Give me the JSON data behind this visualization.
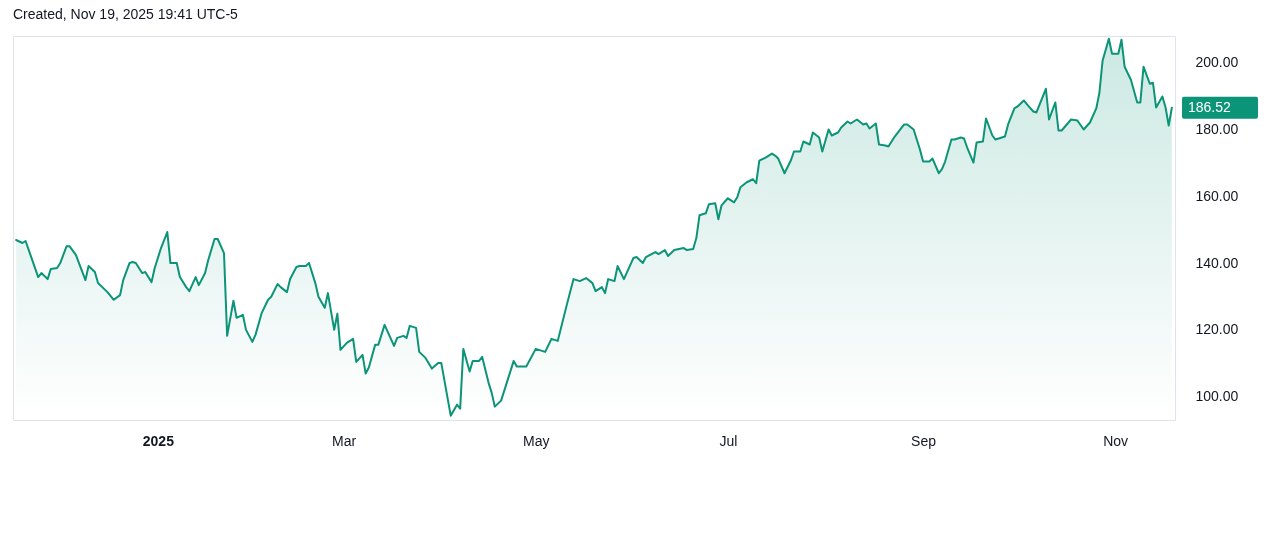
{
  "chart_data": {
    "type": "area",
    "title": "Created, Nov 19, 2025 19:41 UTC-5",
    "x": [
      "2024-11-17",
      "2024-11-19",
      "2024-11-20",
      "2024-11-24",
      "2024-11-25",
      "2024-11-27",
      "2024-11-28",
      "2024-11-30",
      "2024-12-01",
      "2024-12-03",
      "2024-12-04",
      "2024-12-06",
      "2024-12-09",
      "2024-12-10",
      "2024-12-12",
      "2024-12-13",
      "2024-12-16",
      "2024-12-18",
      "2024-12-20",
      "2024-12-21",
      "2024-12-23",
      "2024-12-24",
      "2024-12-25",
      "2024-12-27",
      "2024-12-28",
      "2024-12-30",
      "2024-12-31",
      "2025-01-02",
      "2025-01-04",
      "2025-01-05",
      "2025-01-07",
      "2025-01-08",
      "2025-01-10",
      "2025-01-11",
      "2025-01-13",
      "2025-01-14",
      "2025-01-16",
      "2025-01-17",
      "2025-01-19",
      "2025-01-20",
      "2025-01-22",
      "2025-01-23",
      "2025-01-25",
      "2025-01-26",
      "2025-01-28",
      "2025-01-29",
      "2025-01-31",
      "2025-02-01",
      "2025-02-03",
      "2025-02-05",
      "2025-02-06",
      "2025-02-08",
      "2025-02-09",
      "2025-02-11",
      "2025-02-12",
      "2025-02-14",
      "2025-02-15",
      "2025-02-17",
      "2025-02-18",
      "2025-02-20",
      "2025-02-21",
      "2025-02-23",
      "2025-02-24",
      "2025-02-26",
      "2025-02-27",
      "2025-02-28",
      "2025-03-02",
      "2025-03-04",
      "2025-03-05",
      "2025-03-07",
      "2025-03-08",
      "2025-03-09",
      "2025-03-11",
      "2025-03-12",
      "2025-03-14",
      "2025-03-15",
      "2025-03-17",
      "2025-03-18",
      "2025-03-20",
      "2025-03-21",
      "2025-03-22",
      "2025-03-24",
      "2025-03-25",
      "2025-03-27",
      "2025-03-29",
      "2025-03-31",
      "2025-04-01",
      "2025-04-04",
      "2025-04-06",
      "2025-04-07",
      "2025-04-08",
      "2025-04-10",
      "2025-04-11",
      "2025-04-13",
      "2025-04-14",
      "2025-04-16",
      "2025-04-17",
      "2025-04-18",
      "2025-04-20",
      "2025-04-24",
      "2025-04-25",
      "2025-04-28",
      "2025-05-01",
      "2025-05-04",
      "2025-05-06",
      "2025-05-08",
      "2025-05-11",
      "2025-05-13",
      "2025-05-15",
      "2025-05-17",
      "2025-05-19",
      "2025-05-20",
      "2025-05-22",
      "2025-05-23",
      "2025-05-24",
      "2025-05-26",
      "2025-05-27",
      "2025-05-29",
      "2025-05-30",
      "2025-06-01",
      "2025-06-02",
      "2025-06-04",
      "2025-06-05",
      "2025-06-08",
      "2025-06-09",
      "2025-06-11",
      "2025-06-12",
      "2025-06-14",
      "2025-06-17",
      "2025-06-18",
      "2025-06-20",
      "2025-06-21",
      "2025-06-22",
      "2025-06-24",
      "2025-06-25",
      "2025-06-27",
      "2025-06-28",
      "2025-06-29",
      "2025-07-01",
      "2025-07-03",
      "2025-07-04",
      "2025-07-05",
      "2025-07-07",
      "2025-07-09",
      "2025-07-10",
      "2025-07-11",
      "2025-07-13",
      "2025-07-15",
      "2025-07-16",
      "2025-07-17",
      "2025-07-19",
      "2025-07-21",
      "2025-07-22",
      "2025-07-24",
      "2025-07-25",
      "2025-07-27",
      "2025-07-28",
      "2025-07-30",
      "2025-07-31",
      "2025-08-02",
      "2025-08-03",
      "2025-08-05",
      "2025-08-06",
      "2025-08-08",
      "2025-08-09",
      "2025-08-11",
      "2025-08-13",
      "2025-08-14",
      "2025-08-15",
      "2025-08-17",
      "2025-08-18",
      "2025-08-20",
      "2025-08-21",
      "2025-08-23",
      "2025-08-26",
      "2025-08-27",
      "2025-08-29",
      "2025-08-31",
      "2025-09-01",
      "2025-09-03",
      "2025-09-04",
      "2025-09-06",
      "2025-09-07",
      "2025-09-08",
      "2025-09-10",
      "2025-09-11",
      "2025-09-13",
      "2025-09-14",
      "2025-09-15",
      "2025-09-17",
      "2025-09-18",
      "2025-09-20",
      "2025-09-21",
      "2025-09-23",
      "2025-09-24",
      "2025-09-27",
      "2025-09-28",
      "2025-09-30",
      "2025-10-01",
      "2025-10-03",
      "2025-10-04",
      "2025-10-06",
      "2025-10-07",
      "2025-10-10",
      "2025-10-11",
      "2025-10-13",
      "2025-10-14",
      "2025-10-15",
      "2025-10-18",
      "2025-10-20",
      "2025-10-22",
      "2025-10-24",
      "2025-10-26",
      "2025-10-27",
      "2025-10-28",
      "2025-10-30",
      "2025-10-31",
      "2025-11-02",
      "2025-11-03",
      "2025-11-04",
      "2025-11-06",
      "2025-11-08",
      "2025-11-09",
      "2025-11-10",
      "2025-11-12",
      "2025-11-13",
      "2025-11-14",
      "2025-11-16",
      "2025-11-17",
      "2025-11-18",
      "2025-11-19"
    ],
    "series": [
      {
        "color": "#0c9478",
        "values": [
          146.9,
          146,
          146.6,
          135.8,
          137,
          135.2,
          138.2,
          138.5,
          140,
          145,
          145,
          142.4,
          134.9,
          139.1,
          137.3,
          134,
          131.3,
          129,
          130.4,
          134.9,
          140,
          140.3,
          140,
          137,
          137.3,
          134.3,
          138.5,
          144.5,
          149.3,
          140,
          140,
          135.8,
          132.8,
          131.6,
          135.8,
          133.4,
          137,
          140.9,
          147.2,
          147.2,
          143,
          118.2,
          128.7,
          123.6,
          124.5,
          120,
          116.4,
          118.5,
          125.1,
          129,
          129.9,
          133.7,
          132.8,
          131.3,
          135.2,
          138.8,
          139.1,
          139.1,
          140,
          134,
          129.9,
          126.6,
          131,
          120,
          124.8,
          114,
          116.1,
          117.3,
          110.4,
          112.5,
          106.9,
          108.7,
          115.5,
          115.5,
          121.5,
          119.4,
          115.2,
          117.6,
          118.2,
          117.6,
          121.2,
          120.6,
          113.4,
          111.6,
          108.4,
          110.1,
          110.1,
          94.3,
          97.6,
          96.4,
          114.3,
          107.5,
          110.7,
          110.7,
          111.9,
          104.2,
          101.2,
          97,
          98.8,
          110.7,
          109,
          109,
          114.3,
          113.4,
          117.3,
          116.7,
          128,
          135.2,
          134.6,
          135.5,
          134,
          131.6,
          132.8,
          131,
          135.2,
          134.6,
          139.1,
          135.2,
          137.3,
          141.5,
          141.8,
          140,
          141.8,
          143.3,
          142.7,
          143.9,
          142.1,
          143.9,
          144.5,
          143.9,
          144.2,
          147.5,
          154.3,
          154.9,
          157.6,
          157.9,
          153.1,
          157.3,
          159.4,
          158.2,
          159.7,
          162.7,
          164.2,
          165.1,
          163.9,
          170.7,
          171.6,
          172.8,
          172.2,
          171.3,
          166.9,
          170.7,
          173.4,
          173.4,
          176.4,
          175.5,
          179.1,
          177.6,
          173.4,
          180,
          178.2,
          179.1,
          180.6,
          182.4,
          181.8,
          183,
          181.5,
          181.8,
          180.3,
          181.8,
          175.5,
          175.2,
          174.9,
          177.9,
          181.5,
          181.5,
          180,
          174,
          170.4,
          170.4,
          171.3,
          166.9,
          168.1,
          170.4,
          177,
          177,
          177.6,
          177.3,
          174.6,
          170.1,
          176.1,
          176.4,
          183.3,
          178.2,
          177,
          177.9,
          181.5,
          186.3,
          186.9,
          188.7,
          187.5,
          185.4,
          185.1,
          192.2,
          183,
          188.1,
          179.7,
          179.7,
          183,
          182.7,
          180,
          182.1,
          186.3,
          191,
          200.6,
          207.2,
          202.7,
          202.7,
          206.9,
          198.8,
          194.9,
          188.1,
          188.1,
          198.8,
          193.7,
          194,
          186.6,
          189.9,
          186.6,
          181.2,
          186.52
        ]
      }
    ],
    "xlim": [
      "2024-11-16",
      "2025-11-20"
    ],
    "xticks": [
      {
        "value": "2025-01-01",
        "label": "2025"
      },
      {
        "value": "2025-03-01",
        "label": "Mar"
      },
      {
        "value": "2025-05-01",
        "label": "May"
      },
      {
        "value": "2025-07-01",
        "label": "Jul"
      },
      {
        "value": "2025-09-01",
        "label": "Sep"
      },
      {
        "value": "2025-11-01",
        "label": "Nov"
      }
    ],
    "ylim": [
      93,
      208
    ],
    "yticks": [
      {
        "value": 100,
        "label": "100.00"
      },
      {
        "value": 120,
        "label": "120.00"
      },
      {
        "value": 140,
        "label": "140.00"
      },
      {
        "value": 160,
        "label": "160.00"
      },
      {
        "value": 180,
        "label": "180.00"
      },
      {
        "value": 200,
        "label": "200.00"
      }
    ],
    "annotations": [
      "186.52"
    ]
  }
}
